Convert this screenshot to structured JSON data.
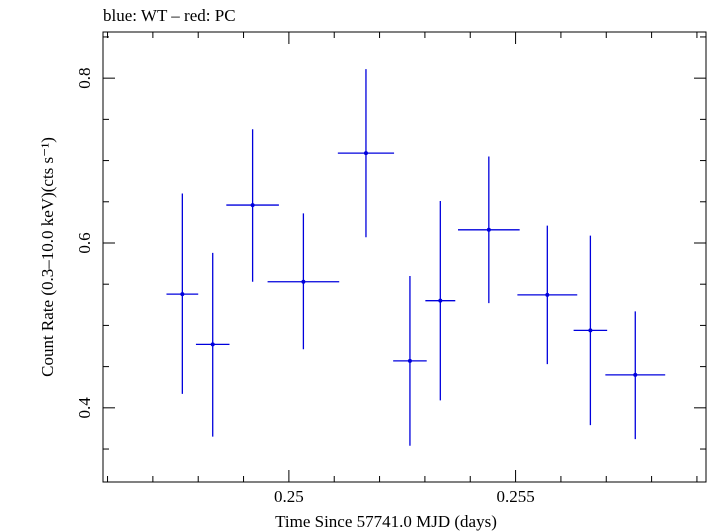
{
  "chart_data": {
    "type": "scatter",
    "title": "blue: WT – red: PC",
    "xlabel": "Time Since 57741.0 MJD (days)",
    "ylabel": "Count Rate (0.3–10.0 keV)(cts s⁻¹)",
    "xlim": [
      0.2459,
      0.2592
    ],
    "ylim": [
      0.31,
      0.856
    ],
    "x_ticks": [
      0.25,
      0.255
    ],
    "x_tick_labels": [
      "0.25",
      "0.255"
    ],
    "y_ticks": [
      0.4,
      0.6,
      0.8
    ],
    "y_tick_labels": [
      "0.4",
      "0.6",
      "0.8"
    ],
    "grid": false,
    "series": [
      {
        "color": "#0000dd",
        "points": [
          {
            "x": 0.24765,
            "xerr": 0.00035,
            "y": 0.538,
            "yerr_low": 0.121,
            "yerr_high": 0.122
          },
          {
            "x": 0.24832,
            "xerr": 0.00037,
            "y": 0.477,
            "yerr_low": 0.112,
            "yerr_high": 0.111
          },
          {
            "x": 0.2492,
            "xerr": 0.00058,
            "y": 0.646,
            "yerr_low": 0.093,
            "yerr_high": 0.092
          },
          {
            "x": 0.25032,
            "xerr": 0.00079,
            "y": 0.553,
            "yerr_low": 0.082,
            "yerr_high": 0.083
          },
          {
            "x": 0.2517,
            "xerr": 0.00062,
            "y": 0.709,
            "yerr_low": 0.102,
            "yerr_high": 0.102
          },
          {
            "x": 0.25267,
            "xerr": 0.00037,
            "y": 0.457,
            "yerr_low": 0.103,
            "yerr_high": 0.103
          },
          {
            "x": 0.25334,
            "xerr": 0.00033,
            "y": 0.53,
            "yerr_low": 0.121,
            "yerr_high": 0.121
          },
          {
            "x": 0.25441,
            "xerr": 0.00068,
            "y": 0.616,
            "yerr_low": 0.089,
            "yerr_high": 0.089
          },
          {
            "x": 0.2557,
            "xerr": 0.00066,
            "y": 0.537,
            "yerr_low": 0.084,
            "yerr_high": 0.084
          },
          {
            "x": 0.25665,
            "xerr": 0.00037,
            "y": 0.494,
            "yerr_low": 0.115,
            "yerr_high": 0.115
          },
          {
            "x": 0.25764,
            "xerr": 0.00066,
            "y": 0.44,
            "yerr_low": 0.078,
            "yerr_high": 0.077
          }
        ]
      }
    ]
  }
}
